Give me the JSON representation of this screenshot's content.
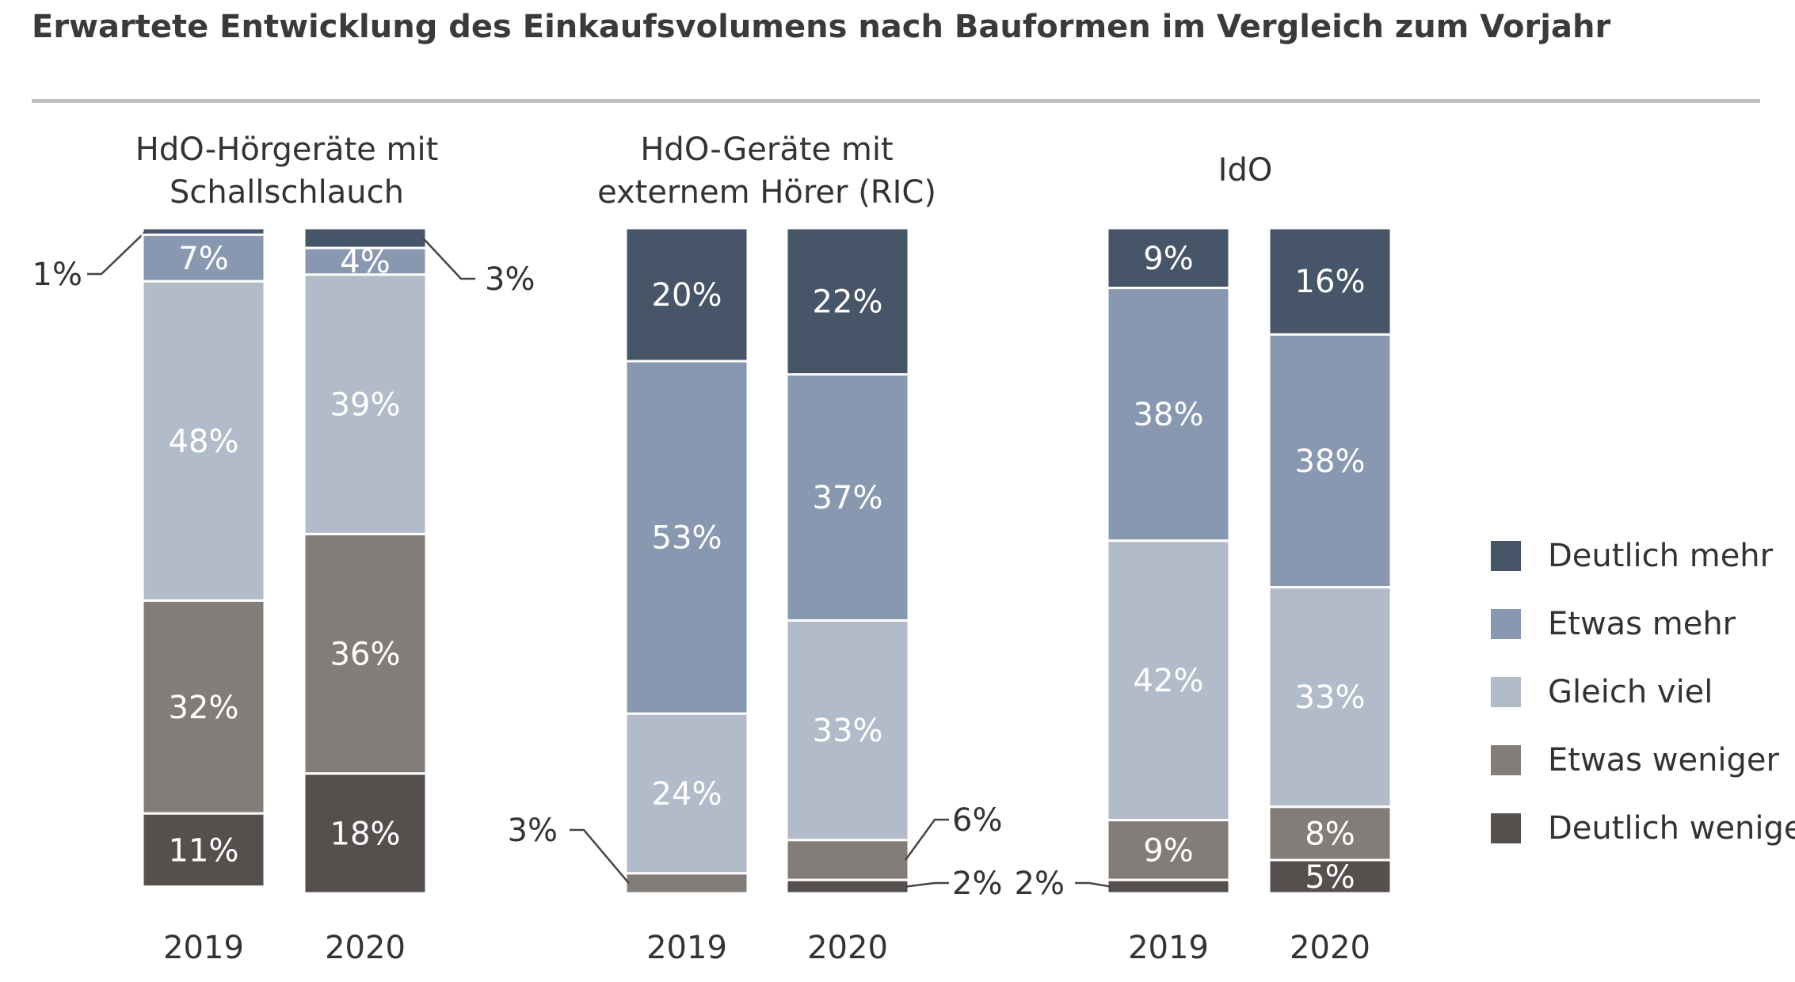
{
  "title": "Erwartete Entwicklung des Einkaufsvolumens nach Bauformen im Vergleich zum Vorjahr",
  "colors": {
    "deutlich_mehr": "#475569",
    "etwas_mehr": "#8898b0",
    "gleich_viel": "#b1bbca",
    "etwas_weniger": "#837d7a",
    "deutlich_weniger": "#55504e",
    "text": "#333333",
    "label_light": "#ffffff"
  },
  "chart_data": {
    "type": "bar",
    "stacked": true,
    "normalized": true,
    "ylim": [
      0,
      100
    ],
    "unit": "%",
    "legend": {
      "position": "right",
      "entries": [
        "Deutlich mehr",
        "Etwas mehr",
        "Gleich viel",
        "Etwas weniger",
        "Deutlich weniger"
      ]
    },
    "panels": [
      {
        "title": "HdO-Hörgeräte mit Schallschlauch",
        "title_lines": [
          "HdO-Hörgeräte mit",
          "Schallschlauch"
        ],
        "categories": [
          "2019",
          "2020"
        ],
        "series": [
          {
            "name": "Deutlich mehr",
            "values": [
              1,
              3
            ]
          },
          {
            "name": "Etwas mehr",
            "values": [
              7,
              4
            ]
          },
          {
            "name": "Gleich viel",
            "values": [
              48,
              39
            ]
          },
          {
            "name": "Etwas weniger",
            "values": [
              32,
              36
            ]
          },
          {
            "name": "Deutlich weniger",
            "values": [
              11,
              18
            ]
          }
        ],
        "labels": [
          [
            "1%",
            "7%",
            "48%",
            "32%",
            "11%"
          ],
          [
            "3%",
            "4%",
            "39%",
            "36%",
            "18%"
          ]
        ]
      },
      {
        "title": "HdO-Geräte mit externem Hörer (RIC)",
        "title_lines": [
          "HdO-Geräte mit",
          "externem Hörer (RIC)"
        ],
        "categories": [
          "2019",
          "2020"
        ],
        "series": [
          {
            "name": "Deutlich mehr",
            "values": [
              20,
              22
            ]
          },
          {
            "name": "Etwas mehr",
            "values": [
              53,
              37
            ]
          },
          {
            "name": "Gleich viel",
            "values": [
              24,
              33
            ]
          },
          {
            "name": "Etwas weniger",
            "values": [
              3,
              6
            ]
          },
          {
            "name": "Deutlich weniger",
            "values": [
              0,
              2
            ]
          }
        ],
        "labels": [
          [
            "20%",
            "53%",
            "24%",
            "3%",
            ""
          ],
          [
            "22%",
            "37%",
            "33%",
            "6%",
            "2%"
          ]
        ]
      },
      {
        "title": "IdO",
        "title_lines": [
          "IdO"
        ],
        "categories": [
          "2019",
          "2020"
        ],
        "series": [
          {
            "name": "Deutlich mehr",
            "values": [
              9,
              16
            ]
          },
          {
            "name": "Etwas mehr",
            "values": [
              38,
              38
            ]
          },
          {
            "name": "Gleich viel",
            "values": [
              42,
              33
            ]
          },
          {
            "name": "Etwas weniger",
            "values": [
              9,
              8
            ]
          },
          {
            "name": "Deutlich weniger",
            "values": [
              2,
              5
            ]
          }
        ],
        "labels": [
          [
            "9%",
            "38%",
            "42%",
            "9%",
            "2%"
          ],
          [
            "16%",
            "38%",
            "33%",
            "8%",
            "5%"
          ]
        ]
      }
    ]
  }
}
